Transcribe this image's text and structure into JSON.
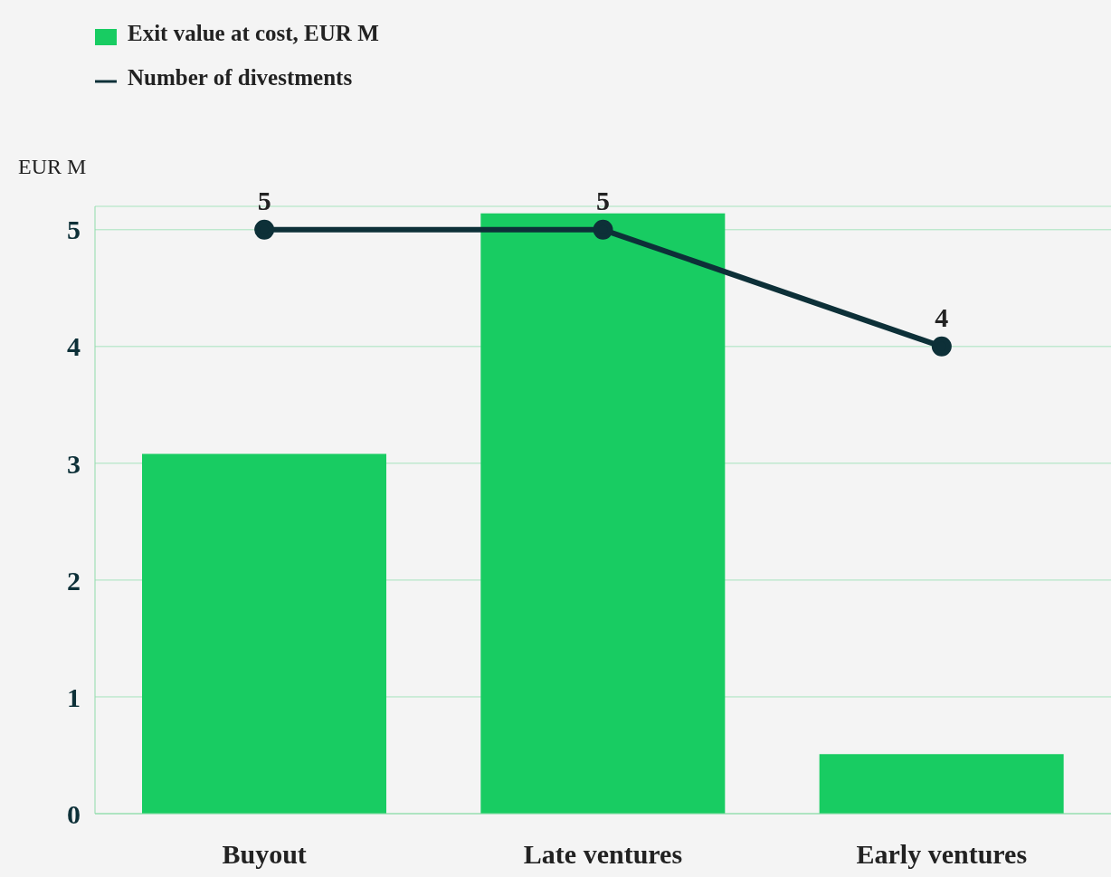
{
  "chart_data": {
    "type": "bar",
    "ylabel": "EUR M",
    "categories": [
      "Buyout",
      "Late ventures",
      "Early ventures"
    ],
    "series": [
      {
        "name": "Exit value at cost, EUR M",
        "color": "#18cc62",
        "values": [
          3.08,
          5.14,
          0.51
        ]
      },
      {
        "name": "Number of divestments",
        "type": "line",
        "color": "#0d3038",
        "values": [
          5,
          5,
          4
        ],
        "value_labels": [
          "5",
          "5",
          "4"
        ]
      }
    ],
    "ylim": [
      0,
      5.2
    ],
    "yticks": [
      0,
      1,
      2,
      3,
      4,
      5
    ],
    "grid": "y",
    "legend": "top left",
    "marker": "circle"
  }
}
